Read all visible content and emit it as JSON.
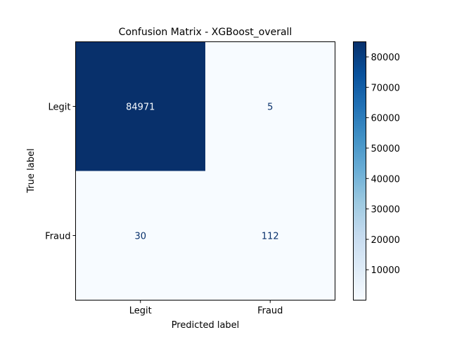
{
  "chart_data": {
    "type": "heatmap",
    "title": "Confusion Matrix - XGBoost_overall",
    "xlabel": "Predicted label",
    "ylabel": "True label",
    "x_categories": [
      "Legit",
      "Fraud"
    ],
    "y_categories": [
      "Legit",
      "Fraud"
    ],
    "values": [
      [
        84971,
        5
      ],
      [
        30,
        112
      ]
    ],
    "cell_labels": [
      [
        "84971",
        "5"
      ],
      [
        "30",
        "112"
      ]
    ],
    "colormap": "Blues",
    "colorbar": {
      "min": 5,
      "max": 84971,
      "ticks": [
        10000,
        20000,
        30000,
        40000,
        50000,
        60000,
        70000,
        80000
      ],
      "tick_labels": [
        "10000",
        "20000",
        "30000",
        "40000",
        "50000",
        "60000",
        "70000",
        "80000"
      ]
    },
    "colors": {
      "cell_dark": "#08306b",
      "cell_light": "#f7fbff",
      "text_on_dark": "#f7fbff",
      "text_on_light": "#08306b"
    }
  }
}
